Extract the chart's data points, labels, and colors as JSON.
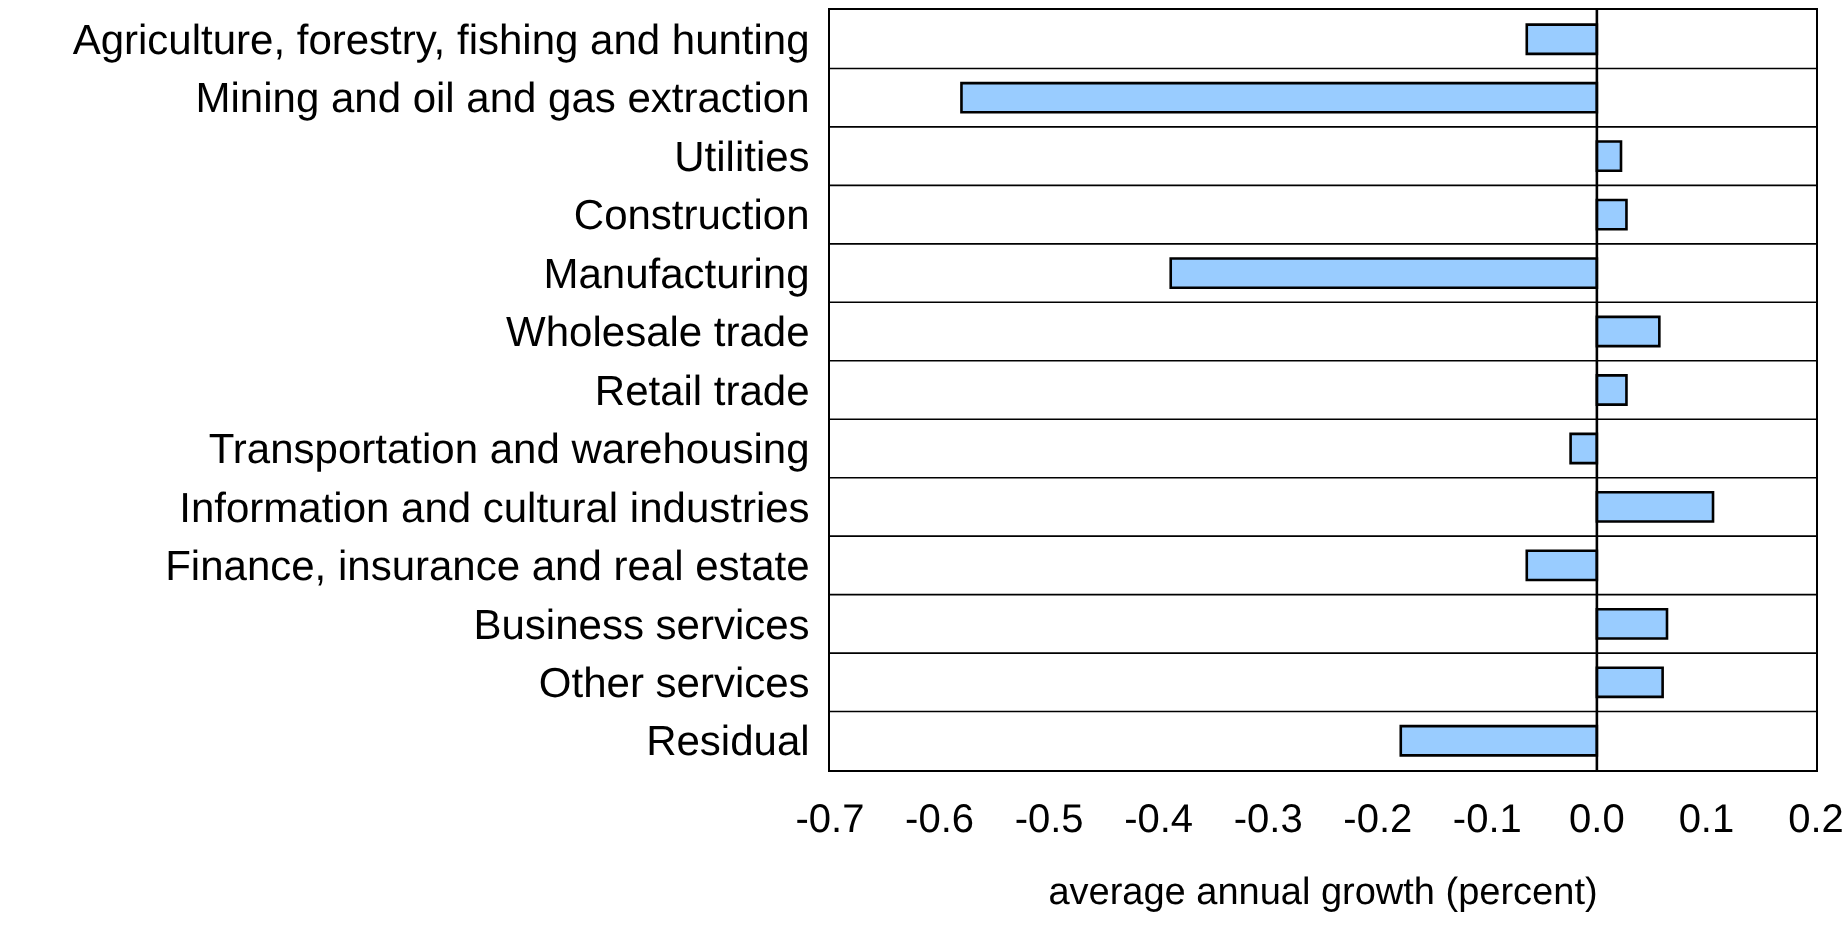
{
  "chart_data": {
    "type": "bar",
    "orientation": "horizontal",
    "xlabel": "average annual growth (percent)",
    "categories": [
      "Agriculture, forestry, fishing and hunting",
      "Mining and oil and gas extraction",
      "Utilities",
      "Construction",
      "Manufacturing",
      "Wholesale trade",
      "Retail trade",
      "Transportation and warehousing",
      "Information and cultural industries",
      "Finance, insurance and real estate",
      "Business services",
      "Other services",
      "Residual"
    ],
    "values": [
      -0.064,
      -0.58,
      0.022,
      0.027,
      -0.389,
      0.057,
      0.027,
      -0.024,
      0.106,
      -0.064,
      0.064,
      0.06,
      -0.179
    ],
    "color": "#99ccff",
    "xlim": [
      -0.7,
      0.2
    ],
    "xticks": [
      {
        "value": -0.7,
        "label": "-0.7"
      },
      {
        "value": -0.6,
        "label": "-0.6"
      },
      {
        "value": -0.5,
        "label": "-0.5"
      },
      {
        "value": -0.4,
        "label": "-0.4"
      },
      {
        "value": -0.3,
        "label": "-0.3"
      },
      {
        "value": -0.2,
        "label": "-0.2"
      },
      {
        "value": -0.1,
        "label": "-0.1"
      },
      {
        "value": 0,
        "label": "0.0"
      },
      {
        "value": 0.1,
        "label": "0.1"
      },
      {
        "value": 0.2,
        "label": "0.2"
      }
    ],
    "grid": "y",
    "ref_lines": [
      {
        "axis": "x",
        "value": 0,
        "color": "#000000"
      }
    ]
  }
}
